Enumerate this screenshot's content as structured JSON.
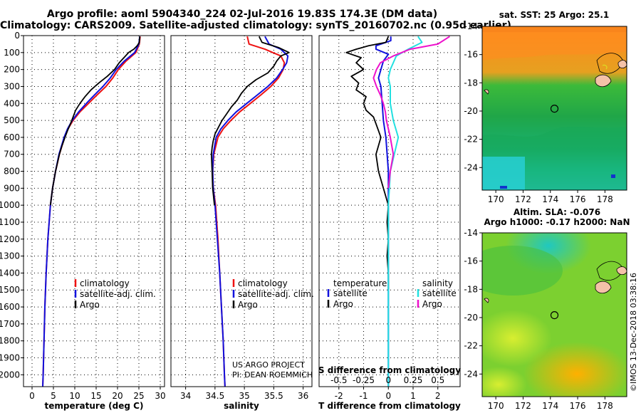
{
  "header": {
    "title_line1": "Argo profile: aoml 5904340_224 02-Jul-2016 19.83S 174.3E (DM data)",
    "title_line2": "Climatology: CARS2009. Satellite-adjusted climatology: synTS_20160702.nc (0.95d earlier)"
  },
  "colors": {
    "climatology": "#ee1111",
    "satellite": "#1111dd",
    "argo": "#000000",
    "sal_satellite": "#22e0e0",
    "sal_argo": "#ee11cc"
  },
  "chart_data": [
    {
      "type": "line",
      "id": "temperature",
      "xlabel": "temperature (deg C)",
      "xlim": [
        -2,
        31
      ],
      "xticks": [
        0,
        5,
        10,
        15,
        20,
        25,
        30
      ],
      "ylim": [
        2070,
        0
      ],
      "yticks": [
        0,
        100,
        200,
        300,
        400,
        500,
        600,
        700,
        800,
        900,
        1000,
        1100,
        1200,
        1300,
        1400,
        1500,
        1600,
        1700,
        1800,
        1900,
        2000
      ],
      "yticklabels": [
        "0",
        "100",
        "200",
        "300",
        "400",
        "500",
        "600",
        "700",
        "800",
        "900",
        "1000",
        "1100",
        "1200",
        "1300",
        "1400",
        "1500",
        "1600",
        "1700",
        "1800",
        "1900",
        "2000"
      ],
      "legend": [
        "climatology",
        "satellite-adj. clim.",
        "Argo"
      ],
      "series": [
        {
          "name": "climatology",
          "color_key": "climatology",
          "depth": [
            5,
            50,
            100,
            150,
            200,
            250,
            300,
            350,
            400,
            450,
            500,
            550,
            600,
            700,
            800,
            900,
            1000,
            1200,
            1400,
            1600,
            1800,
            2000,
            2070
          ],
          "values": [
            25.3,
            25.1,
            24.3,
            22.0,
            20.2,
            18.9,
            17.3,
            15.2,
            13.2,
            11.2,
            9.6,
            8.4,
            7.6,
            6.4,
            5.5,
            4.8,
            4.3,
            3.7,
            3.3,
            3.0,
            2.8,
            2.6,
            2.5
          ]
        },
        {
          "name": "satellite",
          "color_key": "satellite",
          "depth": [
            5,
            50,
            100,
            150,
            200,
            250,
            300,
            350,
            400,
            450,
            500,
            550,
            600,
            700,
            800,
            900,
            1000,
            1200,
            1400,
            1600,
            1800,
            2000,
            2070
          ],
          "values": [
            25.2,
            25.0,
            24.0,
            21.6,
            19.7,
            18.3,
            16.6,
            14.6,
            12.7,
            10.9,
            9.4,
            8.3,
            7.5,
            6.3,
            5.5,
            4.8,
            4.3,
            3.7,
            3.3,
            3.0,
            2.8,
            2.6,
            2.5
          ]
        },
        {
          "name": "Argo",
          "color_key": "argo",
          "depth": [
            5,
            40,
            60,
            80,
            100,
            130,
            160,
            200,
            240,
            280,
            320,
            360,
            400,
            440,
            480,
            520,
            560,
            600,
            650,
            700,
            800,
            900,
            1000
          ],
          "values": [
            25.2,
            25.1,
            24.6,
            23.8,
            22.6,
            21.5,
            20.4,
            19.3,
            17.6,
            15.6,
            13.8,
            12.4,
            11.2,
            10.2,
            9.6,
            9.0,
            8.3,
            7.7,
            7.0,
            6.4,
            5.5,
            4.8,
            4.3
          ]
        }
      ]
    },
    {
      "type": "line",
      "id": "salinity",
      "xlabel": "salinity",
      "xlim": [
        33.75,
        36.15
      ],
      "xticks": [
        34,
        34.5,
        35,
        35.5,
        36
      ],
      "xticklabels": [
        "34",
        "34.5",
        "35",
        "35.5",
        "36"
      ],
      "ylim": [
        2070,
        0
      ],
      "legend": [
        "climatology",
        "satellite-adj. clim.",
        "Argo"
      ],
      "credits": [
        "US ARGO PROJECT",
        "PI: DEAN ROEMMICH"
      ],
      "series": [
        {
          "name": "climatology",
          "color_key": "climatology",
          "depth": [
            5,
            50,
            80,
            120,
            160,
            200,
            250,
            300,
            350,
            400,
            450,
            500,
            550,
            600,
            700,
            800,
            900,
            950,
            1000,
            1200,
            1400,
            1600,
            1800,
            2000,
            2070
          ],
          "values": [
            35.05,
            35.08,
            35.35,
            35.62,
            35.68,
            35.66,
            35.58,
            35.45,
            35.28,
            35.1,
            34.92,
            34.77,
            34.64,
            34.55,
            34.48,
            34.46,
            34.47,
            34.49,
            34.51,
            34.55,
            34.58,
            34.61,
            34.64,
            34.66,
            34.67
          ]
        },
        {
          "name": "satellite",
          "color_key": "satellite",
          "depth": [
            5,
            50,
            80,
            120,
            160,
            200,
            250,
            300,
            350,
            400,
            450,
            500,
            550,
            600,
            700,
            800,
            900,
            1000,
            1200,
            1400,
            1600,
            1800,
            2000,
            2070
          ],
          "values": [
            35.35,
            35.42,
            35.62,
            35.74,
            35.72,
            35.65,
            35.55,
            35.4,
            35.22,
            35.04,
            34.86,
            34.72,
            34.6,
            34.52,
            34.47,
            34.46,
            34.47,
            34.5,
            34.54,
            34.58,
            34.61,
            34.64,
            34.66,
            34.67
          ]
        },
        {
          "name": "Argo",
          "color_key": "argo",
          "depth": [
            5,
            40,
            70,
            100,
            120,
            150,
            180,
            220,
            260,
            300,
            340,
            380,
            420,
            460,
            500,
            540,
            580,
            620,
            660,
            700,
            800,
            900,
            1000
          ],
          "values": [
            35.25,
            35.3,
            35.58,
            35.76,
            35.62,
            35.55,
            35.5,
            35.4,
            35.2,
            35.05,
            34.95,
            34.88,
            34.78,
            34.7,
            34.62,
            34.56,
            34.5,
            34.47,
            34.45,
            34.44,
            34.45,
            34.46,
            34.49
          ]
        }
      ]
    },
    {
      "type": "line",
      "id": "difference",
      "xlabel": "T difference from climatology",
      "xlim": [
        -2.8,
        2.9
      ],
      "xticks": [
        -2,
        -1,
        0,
        1,
        2
      ],
      "xticklabels": [
        "-2",
        "-1",
        "0",
        "1",
        "2"
      ],
      "top_xlabel": "S difference from climatology",
      "top_xticks": [
        -0.5,
        -0.25,
        0,
        0.25,
        0.5
      ],
      "top_xticklabels": [
        "-0.5",
        "-0.25",
        "0",
        "0.25",
        "0.5"
      ],
      "ylim": [
        2070,
        0
      ],
      "legend_temperature": {
        "title": "temperature",
        "items": [
          "satellite",
          "Argo"
        ]
      },
      "legend_salinity": {
        "title": "salinity",
        "items": [
          "satellite",
          "Argo"
        ]
      },
      "series": [
        {
          "name": "temperature satellite",
          "color_key": "satellite",
          "depth": [
            5,
            30,
            60,
            80,
            110,
            150,
            200,
            250,
            300,
            400,
            500,
            600,
            800,
            1000,
            1500,
            2070
          ],
          "values": [
            0.1,
            0.1,
            -0.5,
            -0.5,
            0.0,
            -0.2,
            -0.3,
            -0.4,
            -0.3,
            -0.25,
            -0.2,
            -0.1,
            0.0,
            0.0,
            0.0,
            0.0
          ]
        },
        {
          "name": "temperature Argo",
          "color_key": "argo",
          "depth": [
            5,
            40,
            60,
            80,
            100,
            130,
            160,
            200,
            240,
            280,
            320,
            360,
            400,
            440,
            480,
            520,
            560,
            600,
            700,
            800,
            900,
            1000,
            1100,
            1200,
            1300,
            1400,
            1500
          ],
          "values": [
            0.0,
            -0.1,
            -0.8,
            -1.3,
            -1.7,
            -1.1,
            -1.3,
            -1.0,
            -1.5,
            -1.2,
            -1.3,
            -0.9,
            -1.0,
            -0.9,
            -0.6,
            -0.5,
            -0.4,
            -0.3,
            -0.5,
            -0.4,
            -0.2,
            0.0,
            -0.05,
            0.0,
            -0.05,
            0.0,
            0.0
          ]
        },
        {
          "name": "salinity satellite",
          "color_key": "sal_satellite",
          "depth": [
            5,
            40,
            80,
            120,
            160,
            200,
            250,
            300,
            400,
            500,
            600,
            700,
            800,
            900,
            1000,
            1500,
            2070
          ],
          "values": [
            0.3,
            0.34,
            0.2,
            0.08,
            0.05,
            0.02,
            0.0,
            0.02,
            0.02,
            0.05,
            0.1,
            0.06,
            0.02,
            0.01,
            0.0,
            0.0,
            0.0
          ]
        },
        {
          "name": "salinity Argo",
          "color_key": "sal_argo",
          "depth": [
            5,
            50,
            80,
            120,
            160,
            200,
            250,
            300,
            350,
            400,
            450,
            500,
            550,
            600,
            700,
            800,
            900
          ],
          "values": [
            0.62,
            0.5,
            0.22,
            0.05,
            -0.08,
            -0.12,
            -0.15,
            -0.12,
            -0.08,
            -0.05,
            -0.03,
            -0.02,
            0.0,
            0.02,
            0.05,
            0.02,
            0.0
          ]
        }
      ]
    }
  ],
  "maps": {
    "sst": {
      "title": "sat. SST: 25 Argo: 25.1",
      "lon_ticks": [
        170,
        172,
        174,
        176,
        178
      ],
      "lat_ticks": [
        -14,
        -16,
        -18,
        -20,
        -22,
        -24
      ]
    },
    "sla": {
      "title_line1": "Altim. SLA: -0.076",
      "title_line2": "Argo h1000: -0.17 h2000: NaN",
      "lon_ticks": [
        170,
        172,
        174,
        176,
        178
      ],
      "lat_ticks": [
        -14,
        -16,
        -18,
        -20,
        -22,
        -24
      ]
    },
    "profile_position": {
      "lon": 174.3,
      "lat": -19.83
    },
    "lon_range": [
      169.0,
      179.6
    ],
    "lat_range": [
      -14.0,
      -25.6
    ]
  },
  "footer": {
    "stamp": "©IMOS 13-Dec-2018 03:38:16"
  }
}
